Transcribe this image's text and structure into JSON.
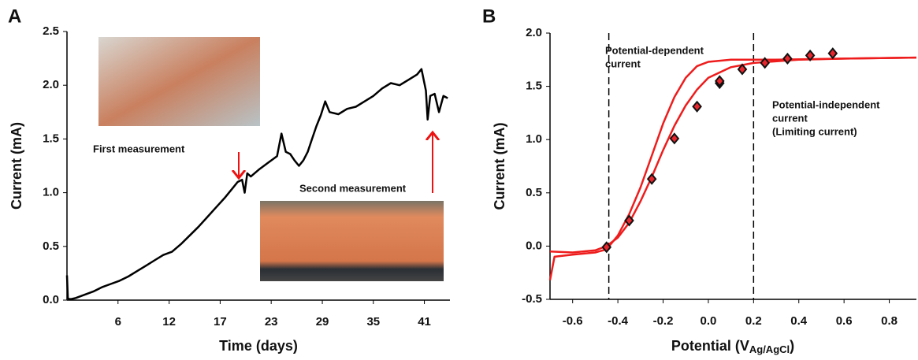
{
  "chart_data": [
    {
      "type": "line",
      "panel": "A",
      "x_label": "Time (days)",
      "y_label": "Current (mA)",
      "annotations": [
        "First measurement",
        "Second measurement"
      ],
      "xlim": [
        0,
        43.75
      ],
      "xticks": [
        {
          "value": 5.83,
          "label": "6"
        },
        {
          "value": 11.67,
          "label": "12"
        },
        {
          "value": 17.5,
          "label": "17"
        },
        {
          "value": 23.33,
          "label": "23"
        },
        {
          "value": 29.17,
          "label": "29"
        },
        {
          "value": 35,
          "label": "35"
        },
        {
          "value": 40.83,
          "label": "41"
        }
      ],
      "ylim": [
        0,
        2.5
      ],
      "yticks": [
        {
          "value": 0,
          "label": "0.0"
        },
        0.5,
        {
          "value": 1,
          "label": "1.0"
        },
        1.5,
        {
          "value": 2,
          "label": "2.0"
        },
        2.5
      ],
      "x": [
        0,
        0.1,
        0.2,
        0.5,
        1,
        2,
        3,
        4,
        5,
        6,
        7,
        8,
        9,
        10,
        11,
        12,
        13,
        14,
        15,
        16,
        17,
        18,
        19,
        19.5,
        20,
        20.3,
        20.6,
        21,
        22,
        23,
        24,
        24.5,
        25,
        25.5,
        26,
        26.5,
        27,
        27.5,
        28,
        28.5,
        29,
        29.5,
        30,
        31,
        32,
        33,
        34,
        35,
        36,
        37,
        38,
        39,
        40,
        40.5,
        41,
        41.2,
        41.5,
        42,
        42.5,
        43,
        43.5
      ],
      "series": [
        {
          "color": "#000000",
          "values": [
            0.23,
            0.02,
            0.01,
            0.01,
            0.02,
            0.05,
            0.08,
            0.12,
            0.15,
            0.18,
            0.22,
            0.27,
            0.32,
            0.37,
            0.42,
            0.45,
            0.52,
            0.6,
            0.68,
            0.77,
            0.86,
            0.95,
            1.05,
            1.1,
            1.12,
            1.0,
            1.18,
            1.15,
            1.22,
            1.28,
            1.34,
            1.55,
            1.38,
            1.36,
            1.3,
            1.25,
            1.3,
            1.38,
            1.5,
            1.62,
            1.72,
            1.85,
            1.75,
            1.73,
            1.78,
            1.8,
            1.85,
            1.9,
            1.97,
            2.02,
            2.0,
            2.05,
            2.1,
            2.15,
            1.95,
            1.68,
            1.9,
            1.92,
            1.75,
            1.9,
            1.88
          ]
        }
      ]
    },
    {
      "type": "line",
      "panel": "B",
      "x_label": {
        "text": "Potential (V",
        "subscript": "Ag/AgCl",
        "suffix": ")"
      },
      "y_label": "Current (mA)",
      "annotations": [
        [
          "Potential-dependent",
          "current"
        ],
        [
          "Potential-independent",
          "current",
          "(Limiting current)"
        ]
      ],
      "vlines": [
        -0.44,
        0.2
      ],
      "xlim": [
        -0.7,
        0.92
      ],
      "xticks": [
        -0.6,
        -0.4,
        -0.2,
        {
          "value": 0,
          "label": "0.0"
        },
        0.2,
        0.4,
        0.6,
        0.8
      ],
      "ylim": [
        -0.5,
        2.0
      ],
      "yticks": [
        -0.5,
        {
          "value": 0,
          "label": "0.0"
        },
        0.5,
        {
          "value": 1,
          "label": "1.0"
        },
        1.5,
        {
          "value": 2,
          "label": "2.0"
        }
      ],
      "series": [
        {
          "color": "#ee1c1c",
          "x": [
            -0.7,
            -0.68,
            -0.6,
            -0.5,
            -0.45,
            -0.4,
            -0.35,
            -0.3,
            -0.25,
            -0.2,
            -0.15,
            -0.1,
            -0.05,
            0.0,
            0.1,
            0.3,
            0.6,
            0.92
          ],
          "values": [
            -0.32,
            -0.1,
            -0.08,
            -0.06,
            -0.03,
            0.1,
            0.3,
            0.55,
            0.85,
            1.15,
            1.4,
            1.58,
            1.69,
            1.73,
            1.75,
            1.75,
            1.76,
            1.77
          ]
        },
        {
          "color": "#ee1c1c",
          "x": [
            -0.7,
            -0.6,
            -0.5,
            -0.45,
            -0.4,
            -0.35,
            -0.3,
            -0.25,
            -0.2,
            -0.15,
            -0.1,
            -0.05,
            0.0,
            0.1,
            0.2,
            0.4,
            0.6,
            0.92
          ],
          "values": [
            -0.05,
            -0.06,
            -0.04,
            0.0,
            0.08,
            0.22,
            0.42,
            0.65,
            0.9,
            1.13,
            1.32,
            1.47,
            1.58,
            1.68,
            1.72,
            1.75,
            1.76,
            1.77
          ]
        },
        {
          "color": "#e8262d",
          "marker": "diamond",
          "x": [
            -0.45,
            -0.35,
            -0.25,
            -0.15,
            -0.05,
            0.05,
            0.05,
            0.15,
            0.25,
            0.35,
            0.45,
            0.55
          ],
          "values": [
            -0.01,
            0.24,
            0.63,
            1.01,
            1.31,
            1.53,
            1.55,
            1.66,
            1.72,
            1.76,
            1.79,
            1.81
          ]
        }
      ]
    }
  ]
}
